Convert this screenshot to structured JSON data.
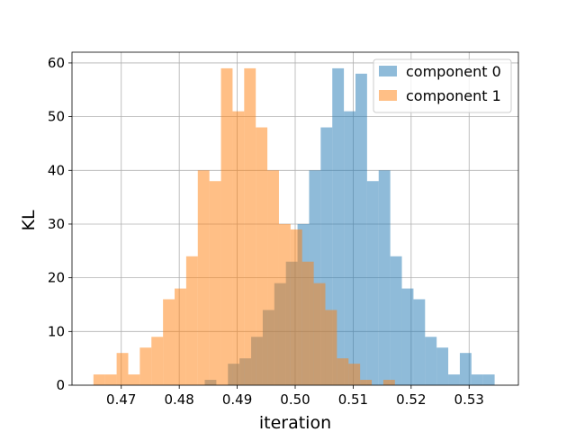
{
  "chart_data": {
    "type": "histogram",
    "xlabel": "iteration",
    "ylabel": "KL",
    "xlim": [
      0.4615,
      0.5385
    ],
    "ylim": [
      0,
      62
    ],
    "grid": true,
    "legend_position": "top-right",
    "xticks": [
      0.47,
      0.48,
      0.49,
      0.5,
      0.51,
      0.52,
      0.53
    ],
    "xtick_labels": [
      "0.47",
      "0.48",
      "0.49",
      "0.50",
      "0.51",
      "0.52",
      "0.53"
    ],
    "yticks": [
      0,
      10,
      20,
      30,
      40,
      50,
      60
    ],
    "ytick_labels": [
      "0",
      "10",
      "20",
      "30",
      "40",
      "50",
      "60"
    ],
    "series": [
      {
        "name": "component 0",
        "color": "#1f77b4",
        "alpha": 0.5,
        "bins": [
          {
            "x0": 0.4844,
            "x1": 0.4864,
            "count": 1
          },
          {
            "x0": 0.4864,
            "x1": 0.4884,
            "count": 0
          },
          {
            "x0": 0.4884,
            "x1": 0.4904,
            "count": 4
          },
          {
            "x0": 0.4904,
            "x1": 0.4924,
            "count": 5
          },
          {
            "x0": 0.4924,
            "x1": 0.4944,
            "count": 9
          },
          {
            "x0": 0.4944,
            "x1": 0.4964,
            "count": 14
          },
          {
            "x0": 0.4964,
            "x1": 0.4984,
            "count": 19
          },
          {
            "x0": 0.4984,
            "x1": 0.5004,
            "count": 23
          },
          {
            "x0": 0.5004,
            "x1": 0.5024,
            "count": 30
          },
          {
            "x0": 0.5024,
            "x1": 0.5044,
            "count": 40
          },
          {
            "x0": 0.5044,
            "x1": 0.5064,
            "count": 48
          },
          {
            "x0": 0.5064,
            "x1": 0.5084,
            "count": 59
          },
          {
            "x0": 0.5084,
            "x1": 0.5104,
            "count": 51
          },
          {
            "x0": 0.5104,
            "x1": 0.5124,
            "count": 58
          },
          {
            "x0": 0.5124,
            "x1": 0.5144,
            "count": 38
          },
          {
            "x0": 0.5144,
            "x1": 0.5164,
            "count": 40
          },
          {
            "x0": 0.5164,
            "x1": 0.5184,
            "count": 24
          },
          {
            "x0": 0.5184,
            "x1": 0.5204,
            "count": 18
          },
          {
            "x0": 0.5204,
            "x1": 0.5224,
            "count": 16
          },
          {
            "x0": 0.5224,
            "x1": 0.5244,
            "count": 9
          },
          {
            "x0": 0.5244,
            "x1": 0.5264,
            "count": 7
          },
          {
            "x0": 0.5264,
            "x1": 0.5284,
            "count": 2
          },
          {
            "x0": 0.5284,
            "x1": 0.5304,
            "count": 6
          },
          {
            "x0": 0.5304,
            "x1": 0.5324,
            "count": 2
          },
          {
            "x0": 0.5324,
            "x1": 0.5344,
            "count": 2
          }
        ]
      },
      {
        "name": "component 1",
        "color": "#ff7f0e",
        "alpha": 0.5,
        "bins": [
          {
            "x0": 0.4652,
            "x1": 0.4672,
            "count": 2
          },
          {
            "x0": 0.4672,
            "x1": 0.4692,
            "count": 2
          },
          {
            "x0": 0.4692,
            "x1": 0.4712,
            "count": 6
          },
          {
            "x0": 0.4712,
            "x1": 0.4732,
            "count": 2
          },
          {
            "x0": 0.4732,
            "x1": 0.4752,
            "count": 7
          },
          {
            "x0": 0.4752,
            "x1": 0.4772,
            "count": 9
          },
          {
            "x0": 0.4772,
            "x1": 0.4792,
            "count": 16
          },
          {
            "x0": 0.4792,
            "x1": 0.4812,
            "count": 18
          },
          {
            "x0": 0.4812,
            "x1": 0.4832,
            "count": 24
          },
          {
            "x0": 0.4832,
            "x1": 0.4852,
            "count": 40
          },
          {
            "x0": 0.4852,
            "x1": 0.4872,
            "count": 38
          },
          {
            "x0": 0.4872,
            "x1": 0.4892,
            "count": 59
          },
          {
            "x0": 0.4892,
            "x1": 0.4912,
            "count": 51
          },
          {
            "x0": 0.4912,
            "x1": 0.4932,
            "count": 59
          },
          {
            "x0": 0.4932,
            "x1": 0.4952,
            "count": 48
          },
          {
            "x0": 0.4952,
            "x1": 0.4972,
            "count": 40
          },
          {
            "x0": 0.4972,
            "x1": 0.4992,
            "count": 30
          },
          {
            "x0": 0.4992,
            "x1": 0.5012,
            "count": 29
          },
          {
            "x0": 0.5012,
            "x1": 0.5032,
            "count": 23
          },
          {
            "x0": 0.5032,
            "x1": 0.5052,
            "count": 19
          },
          {
            "x0": 0.5052,
            "x1": 0.5072,
            "count": 14
          },
          {
            "x0": 0.5072,
            "x1": 0.5092,
            "count": 5
          },
          {
            "x0": 0.5092,
            "x1": 0.5112,
            "count": 4
          },
          {
            "x0": 0.5112,
            "x1": 0.5132,
            "count": 1
          },
          {
            "x0": 0.5132,
            "x1": 0.5152,
            "count": 0
          },
          {
            "x0": 0.5152,
            "x1": 0.5172,
            "count": 1
          }
        ]
      }
    ]
  }
}
